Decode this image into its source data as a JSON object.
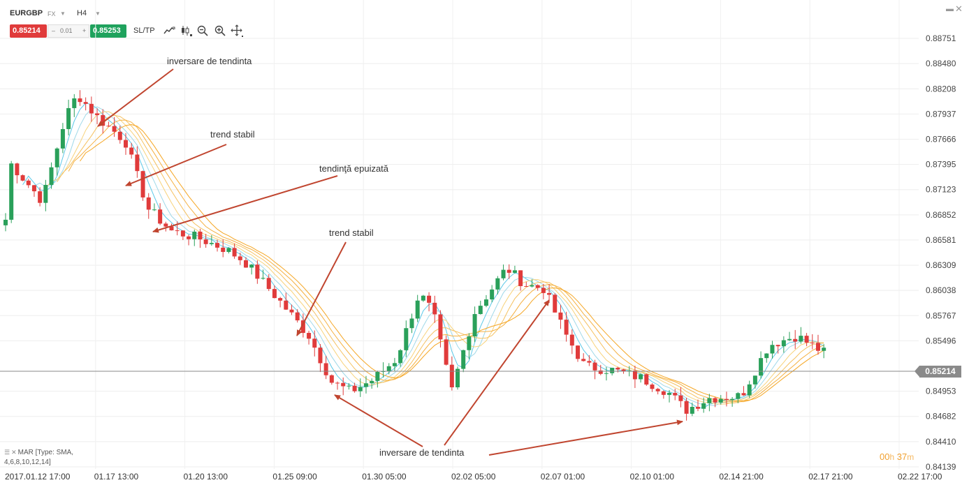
{
  "header": {
    "symbol": "EURGBP",
    "market": "FX",
    "timeframe": "H4",
    "bid": "0.85214",
    "spread": "0.01",
    "spread_minus": "–",
    "spread_plus": "+",
    "ask": "0.85253",
    "sltp": "SL/TP"
  },
  "tools": [
    {
      "name": "line-chart-icon"
    },
    {
      "name": "candlestick-icon"
    },
    {
      "name": "zoom-out-icon"
    },
    {
      "name": "zoom-in-icon"
    },
    {
      "name": "crosshair-icon"
    }
  ],
  "window": {
    "minimize_icon": "minimize-icon",
    "close_icon": "close-icon"
  },
  "price_axis": [
    "0.88751",
    "0.88480",
    "0.88208",
    "0.87937",
    "0.87666",
    "0.87395",
    "0.87123",
    "0.86852",
    "0.86581",
    "0.86309",
    "0.86038",
    "0.85767",
    "0.85496",
    "0.85214",
    "0.84953",
    "0.84682",
    "0.84410",
    "0.84139"
  ],
  "current_price": "0.85214",
  "time_axis": [
    "2017.01.12 17:00",
    "01.17 13:00",
    "01.20 13:00",
    "01.25 09:00",
    "01.30 05:00",
    "02.02 05:00",
    "02.07 01:00",
    "02.10 01:00",
    "02.14 21:00",
    "02.17 21:00",
    "02.22 17:00"
  ],
  "annotations": [
    "inversare de tendinta",
    "trend stabil",
    "tendinţă epuizată",
    "trend stabil",
    "inversare de tendinta"
  ],
  "legend": {
    "line1": "MAR [Type: SMA,",
    "line2": "4,6,8,10,12,14]"
  },
  "timer": {
    "hours": "00",
    "h": "h",
    "minutes": "37",
    "m": "m"
  },
  "colors": {
    "bull": "#2aa05a",
    "bear": "#e03b3b",
    "ma_fast": "#5bc8e8",
    "ma_slow": "#f5a623",
    "arrow": "#c0452f"
  },
  "chart_data": {
    "type": "candlestick",
    "symbol": "EURGBP",
    "timeframe": "H4",
    "ylim": [
      0.84139,
      0.88751
    ],
    "current_price": 0.85214,
    "close_path": [
      [
        0,
        0.868
      ],
      [
        0.6,
        0.874
      ],
      [
        4,
        0.87
      ],
      [
        6.5,
        0.879
      ],
      [
        7.8,
        0.8815
      ],
      [
        10,
        0.879
      ],
      [
        13,
        0.8765
      ],
      [
        15.5,
        0.8692
      ],
      [
        18,
        0.8668
      ],
      [
        21,
        0.866
      ],
      [
        24,
        0.8648
      ],
      [
        26,
        0.8635
      ],
      [
        29.5,
        0.8596
      ],
      [
        33,
        0.8555
      ],
      [
        35.5,
        0.8505
      ],
      [
        37.5,
        0.8495
      ],
      [
        40,
        0.8508
      ],
      [
        42.5,
        0.853
      ],
      [
        45,
        0.8601
      ],
      [
        46.5,
        0.858
      ],
      [
        48.5,
        0.8495
      ],
      [
        51,
        0.858
      ],
      [
        54.5,
        0.8628
      ],
      [
        56.5,
        0.861
      ],
      [
        58.5,
        0.8606
      ],
      [
        61,
        0.8555
      ],
      [
        63,
        0.8522
      ],
      [
        66,
        0.8518
      ],
      [
        69,
        0.851
      ],
      [
        72,
        0.8495
      ],
      [
        74,
        0.8475
      ],
      [
        76.5,
        0.8488
      ],
      [
        80,
        0.849
      ],
      [
        83,
        0.8545
      ],
      [
        86,
        0.8555
      ],
      [
        89,
        0.8537
      ]
    ],
    "moving_averages": {
      "type": "SMA",
      "periods": [
        4,
        6,
        8,
        10,
        12,
        14
      ]
    }
  }
}
